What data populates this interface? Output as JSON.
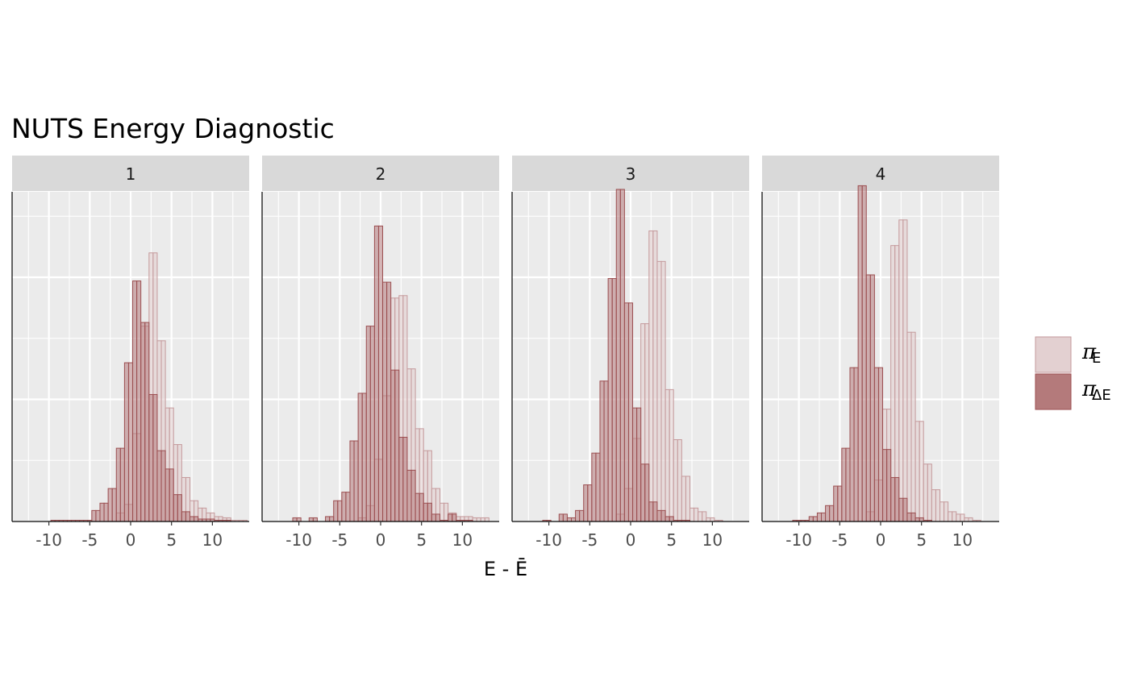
{
  "chart_data": {
    "type": "histogram",
    "title": "NUTS Energy Diagnostic",
    "xlabel": "E - Ē",
    "ylabel": "",
    "xlim": [
      -14.5,
      14.5
    ],
    "ylim": [
      0,
      0.27
    ],
    "x_ticks": [
      -10,
      -5,
      0,
      5,
      10
    ],
    "x_tick_labels": [
      "-10",
      "-5",
      "0",
      "5",
      "10"
    ],
    "bin_start": -10.75,
    "bin_width": 0.5,
    "facets": [
      "1",
      "2",
      "3",
      "4"
    ],
    "legend": {
      "position": "right",
      "items": [
        {
          "symbol": "π",
          "sub": "E",
          "fill": "#e3d0d1",
          "stroke": "#c59a9c"
        },
        {
          "symbol": "π",
          "sub": "ΔE",
          "fill": "#b47a7b",
          "stroke": "#9c4f51"
        }
      ]
    },
    "colors": {
      "panel_bg": "#ebebeb",
      "strip_bg": "#d9d9d9",
      "grid": "#ffffff"
    },
    "panels": [
      {
        "label": "1",
        "series": [
          {
            "name": "π_E",
            "values": [
              0,
              0,
              0,
              0,
              0,
              0,
              0,
              0,
              0,
              0,
              0,
              0,
              0,
              0,
              0,
              0,
              0,
              0,
              0.007,
              0.007,
              0.014,
              0.014,
              0.072,
              0.072,
              0.16,
              0.16,
              0.22,
              0.22,
              0.148,
              0.148,
              0.093,
              0.093,
              0.063,
              0.063,
              0.036,
              0.036,
              0.017,
              0.017,
              0.011,
              0.011,
              0.007,
              0.007,
              0.004,
              0.004,
              0.003,
              0.003,
              0.001,
              0.001,
              0.001,
              0.001,
              0,
              0,
              0,
              0,
              0,
              0,
              0,
              0,
              0,
              0
            ]
          },
          {
            "name": "π_ΔE",
            "values": [
              0,
              0,
              0.001,
              0.001,
              0.001,
              0.001,
              0.001,
              0.001,
              0.001,
              0.001,
              0.001,
              0.001,
              0.009,
              0.009,
              0.015,
              0.015,
              0.027,
              0.027,
              0.06,
              0.06,
              0.13,
              0.13,
              0.197,
              0.197,
              0.163,
              0.163,
              0.104,
              0.104,
              0.058,
              0.058,
              0.043,
              0.043,
              0.022,
              0.022,
              0.008,
              0.008,
              0.004,
              0.004,
              0.002,
              0.002,
              0.002,
              0.002,
              0.001,
              0.001,
              0.001,
              0.001,
              0,
              0,
              0,
              0,
              0,
              0,
              0,
              0,
              0,
              0,
              0,
              0,
              0,
              0
            ]
          }
        ]
      },
      {
        "label": "2",
        "series": [
          {
            "name": "π_E",
            "values": [
              0,
              0,
              0,
              0,
              0,
              0,
              0,
              0,
              0,
              0,
              0,
              0,
              0,
              0,
              0,
              0,
              0.003,
              0.003,
              0.013,
              0.013,
              0.051,
              0.051,
              0.103,
              0.103,
              0.183,
              0.183,
              0.185,
              0.185,
              0.125,
              0.125,
              0.076,
              0.076,
              0.058,
              0.058,
              0.027,
              0.027,
              0.015,
              0.015,
              0.007,
              0.007,
              0.004,
              0.004,
              0.004,
              0.004,
              0.003,
              0.003,
              0.003,
              0.003,
              0,
              0,
              0,
              0,
              0,
              0,
              0,
              0,
              0,
              0,
              0,
              0
            ]
          },
          {
            "name": "π_ΔE",
            "values": [
              0.003,
              0.003,
              0,
              0,
              0.003,
              0.003,
              0,
              0,
              0.004,
              0.004,
              0.017,
              0.017,
              0.024,
              0.024,
              0.066,
              0.066,
              0.105,
              0.105,
              0.16,
              0.16,
              0.242,
              0.242,
              0.196,
              0.196,
              0.124,
              0.124,
              0.069,
              0.069,
              0.042,
              0.042,
              0.023,
              0.023,
              0.015,
              0.015,
              0.006,
              0.006,
              0.001,
              0.001,
              0.006,
              0.006,
              0.001,
              0.001,
              0.001,
              0.001,
              0,
              0,
              0,
              0,
              0,
              0,
              0,
              0,
              0,
              0,
              0,
              0,
              0,
              0,
              0,
              0
            ]
          }
        ]
      },
      {
        "label": "3",
        "series": [
          {
            "name": "π_E",
            "values": [
              0,
              0,
              0,
              0,
              0,
              0,
              0,
              0,
              0,
              0,
              0,
              0,
              0,
              0,
              0,
              0,
              0,
              0,
              0.006,
              0.006,
              0.027,
              0.027,
              0.068,
              0.068,
              0.162,
              0.162,
              0.238,
              0.238,
              0.213,
              0.213,
              0.108,
              0.108,
              0.067,
              0.067,
              0.037,
              0.037,
              0.011,
              0.011,
              0.008,
              0.008,
              0.003,
              0.003,
              0.001,
              0.001,
              0,
              0,
              0,
              0,
              0,
              0,
              0,
              0,
              0,
              0,
              0,
              0,
              0,
              0,
              0,
              0
            ]
          },
          {
            "name": "π_ΔE",
            "values": [
              0.001,
              0.001,
              0,
              0,
              0.006,
              0.006,
              0.003,
              0.003,
              0.009,
              0.009,
              0.03,
              0.03,
              0.056,
              0.056,
              0.115,
              0.115,
              0.199,
              0.199,
              0.272,
              0.272,
              0.179,
              0.179,
              0.093,
              0.093,
              0.047,
              0.047,
              0.016,
              0.016,
              0.009,
              0.009,
              0.004,
              0.004,
              0.001,
              0.001,
              0.001,
              0.001,
              0,
              0,
              0,
              0,
              0,
              0,
              0,
              0,
              0,
              0,
              0,
              0,
              0,
              0,
              0,
              0,
              0,
              0,
              0,
              0,
              0,
              0,
              0,
              0
            ]
          }
        ]
      },
      {
        "label": "4",
        "series": [
          {
            "name": "π_E",
            "values": [
              0,
              0,
              0,
              0,
              0,
              0,
              0,
              0,
              0,
              0,
              0,
              0,
              0,
              0,
              0,
              0,
              0,
              0,
              0.008,
              0.008,
              0.034,
              0.034,
              0.092,
              0.092,
              0.226,
              0.226,
              0.247,
              0.247,
              0.155,
              0.155,
              0.082,
              0.082,
              0.047,
              0.047,
              0.026,
              0.026,
              0.016,
              0.016,
              0.008,
              0.008,
              0.006,
              0.006,
              0.003,
              0.003,
              0.001,
              0.001,
              0,
              0,
              0,
              0,
              0,
              0,
              0,
              0,
              0,
              0,
              0,
              0,
              0,
              0
            ]
          },
          {
            "name": "π_ΔE",
            "values": [
              0.001,
              0.001,
              0.001,
              0.001,
              0.004,
              0.004,
              0.007,
              0.007,
              0.013,
              0.013,
              0.029,
              0.029,
              0.06,
              0.06,
              0.126,
              0.126,
              0.275,
              0.275,
              0.202,
              0.202,
              0.126,
              0.126,
              0.059,
              0.059,
              0.036,
              0.036,
              0.019,
              0.019,
              0.007,
              0.007,
              0.003,
              0.003,
              0.001,
              0.001,
              0,
              0,
              0,
              0,
              0,
              0,
              0,
              0,
              0,
              0,
              0,
              0,
              0,
              0,
              0,
              0,
              0,
              0,
              0,
              0,
              0,
              0,
              0,
              0,
              0,
              0
            ]
          }
        ]
      }
    ]
  }
}
